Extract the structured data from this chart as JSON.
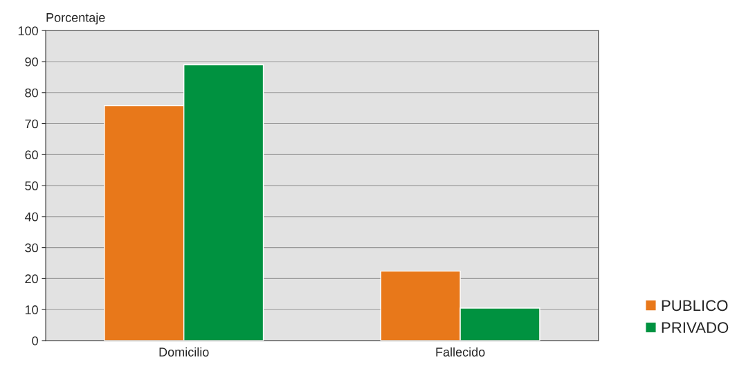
{
  "chart_data": {
    "type": "bar",
    "ylabel": "Porcentaje",
    "categories": [
      "Domicilio",
      "Fallecido"
    ],
    "series": [
      {
        "name": "PUBLICO",
        "color": "#e8781a",
        "values": [
          75.8,
          22.4
        ]
      },
      {
        "name": "PRIVADO",
        "color": "#009240",
        "values": [
          89.0,
          10.5
        ]
      }
    ],
    "ylim": [
      0,
      100
    ],
    "yticks": [
      0,
      10,
      20,
      30,
      40,
      50,
      60,
      70,
      80,
      90,
      100
    ],
    "grid": "y",
    "legend": "bottom right"
  }
}
